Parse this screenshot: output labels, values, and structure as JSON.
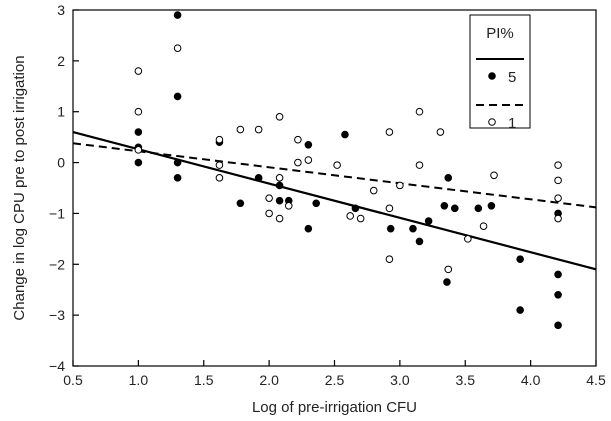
{
  "chart_data": {
    "type": "scatter",
    "xlabel": "Log of pre-irrigation CFU",
    "ylabel": "Change in log CPU pre to post irrigation",
    "xlim": [
      0.5,
      4.5
    ],
    "ylim": [
      -4,
      3
    ],
    "xticks": [
      "0.5",
      "1.0",
      "1.5",
      "2.0",
      "2.5",
      "3.0",
      "3.5",
      "4.0",
      "4.5"
    ],
    "yticks": [
      "3",
      "2",
      "1",
      "0",
      "−1",
      "−2",
      "−3",
      "−4"
    ],
    "legend": {
      "title": "PI%",
      "position": "top-right",
      "entries": [
        {
          "label": "5",
          "line": "solid",
          "marker": "filled-circle"
        },
        {
          "label": "1",
          "line": "dashed",
          "marker": "open-circle"
        }
      ]
    },
    "series": [
      {
        "name": "5",
        "marker": "filled",
        "color": "#000000",
        "points": [
          [
            1.0,
            0.6
          ],
          [
            1.0,
            0.3
          ],
          [
            1.0,
            0.0
          ],
          [
            1.3,
            2.9
          ],
          [
            1.3,
            1.3
          ],
          [
            1.3,
            0.0
          ],
          [
            1.3,
            -0.3
          ],
          [
            1.62,
            0.4
          ],
          [
            1.78,
            -0.8
          ],
          [
            1.92,
            -0.3
          ],
          [
            2.08,
            -0.45
          ],
          [
            2.08,
            -0.75
          ],
          [
            2.15,
            -0.75
          ],
          [
            2.3,
            0.35
          ],
          [
            2.3,
            -1.3
          ],
          [
            2.36,
            -0.8
          ],
          [
            2.58,
            0.55
          ],
          [
            2.66,
            -0.9
          ],
          [
            2.93,
            -1.3
          ],
          [
            3.1,
            -1.3
          ],
          [
            3.15,
            -1.55
          ],
          [
            3.22,
            -1.15
          ],
          [
            3.34,
            -0.85
          ],
          [
            3.37,
            -0.3
          ],
          [
            3.42,
            -0.9
          ],
          [
            3.36,
            -2.35
          ],
          [
            3.6,
            -0.9
          ],
          [
            3.7,
            -0.85
          ],
          [
            3.92,
            -1.9
          ],
          [
            3.92,
            -2.9
          ],
          [
            4.21,
            -1.0
          ],
          [
            4.21,
            -2.2
          ],
          [
            4.21,
            -2.6
          ],
          [
            4.21,
            -3.2
          ]
        ],
        "fit": {
          "x": [
            0.5,
            4.5
          ],
          "y": [
            0.6,
            -2.1
          ]
        }
      },
      {
        "name": "1",
        "marker": "open",
        "color": "#000000",
        "points": [
          [
            1.0,
            1.8
          ],
          [
            1.0,
            1.0
          ],
          [
            1.0,
            0.25
          ],
          [
            1.3,
            2.25
          ],
          [
            1.62,
            0.45
          ],
          [
            1.62,
            -0.05
          ],
          [
            1.62,
            -0.3
          ],
          [
            1.78,
            0.65
          ],
          [
            1.92,
            0.65
          ],
          [
            2.0,
            -0.7
          ],
          [
            2.0,
            -1.0
          ],
          [
            2.08,
            0.9
          ],
          [
            2.08,
            -0.3
          ],
          [
            2.08,
            -1.1
          ],
          [
            2.15,
            -0.85
          ],
          [
            2.22,
            0.45
          ],
          [
            2.22,
            0.0
          ],
          [
            2.3,
            0.05
          ],
          [
            2.52,
            -0.05
          ],
          [
            2.62,
            -1.05
          ],
          [
            2.7,
            -1.1
          ],
          [
            2.8,
            -0.55
          ],
          [
            2.92,
            0.6
          ],
          [
            2.92,
            -0.9
          ],
          [
            2.92,
            -1.9
          ],
          [
            3.0,
            -0.45
          ],
          [
            3.15,
            1.0
          ],
          [
            3.15,
            -0.05
          ],
          [
            3.31,
            0.6
          ],
          [
            3.37,
            -2.1
          ],
          [
            3.52,
            -1.5
          ],
          [
            3.64,
            -1.25
          ],
          [
            3.72,
            -0.25
          ],
          [
            4.21,
            -0.05
          ],
          [
            4.21,
            -0.35
          ],
          [
            4.21,
            -0.7
          ],
          [
            4.21,
            -1.1
          ]
        ],
        "fit": {
          "x": [
            0.5,
            4.5
          ],
          "y": [
            0.38,
            -0.88
          ]
        }
      }
    ]
  }
}
